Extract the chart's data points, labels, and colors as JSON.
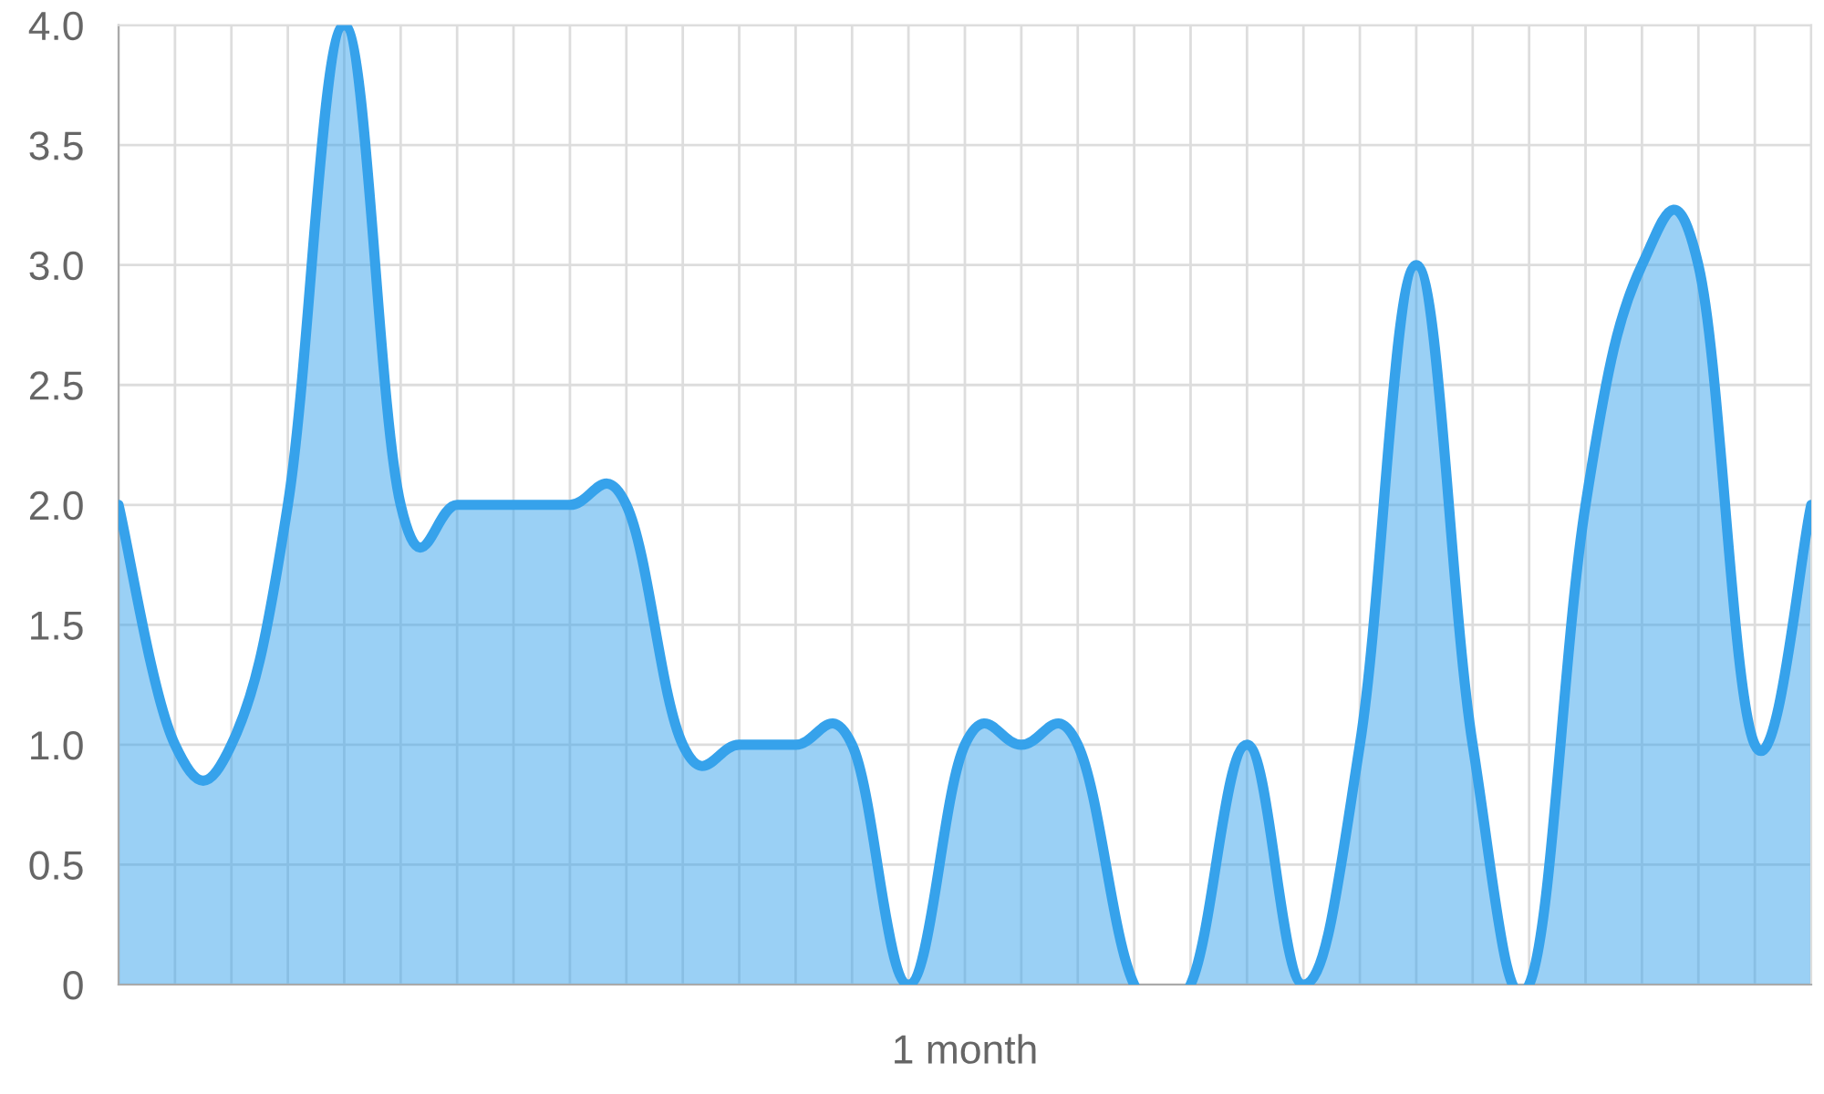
{
  "chart_data": {
    "type": "area",
    "xlabel": "1 month",
    "categories": [
      null,
      null,
      null,
      null,
      null,
      null,
      null,
      null,
      null,
      null,
      null,
      null,
      null,
      null,
      null,
      null,
      null,
      null,
      null,
      null,
      null,
      null,
      null,
      null,
      null,
      null,
      null,
      null,
      null,
      null,
      null
    ],
    "series": [
      {
        "color": "#36a2eb",
        "values": [
          2,
          1,
          1,
          2,
          4,
          2,
          2,
          2,
          2,
          2,
          1,
          1,
          1,
          1,
          0,
          1,
          1,
          1,
          0,
          0,
          1,
          0,
          1,
          3,
          1,
          0,
          2,
          3,
          3,
          1,
          2
        ]
      }
    ],
    "ylim": [
      0,
      4
    ],
    "yticks": [
      {
        "value": 0,
        "label": "0"
      },
      0.5,
      {
        "value": 1,
        "label": "1.0"
      },
      1.5,
      {
        "value": 2,
        "label": "2.0"
      },
      2.5,
      {
        "value": 3,
        "label": "3.0"
      },
      3.5,
      {
        "value": 4,
        "label": "4.0"
      }
    ],
    "grid": true
  }
}
